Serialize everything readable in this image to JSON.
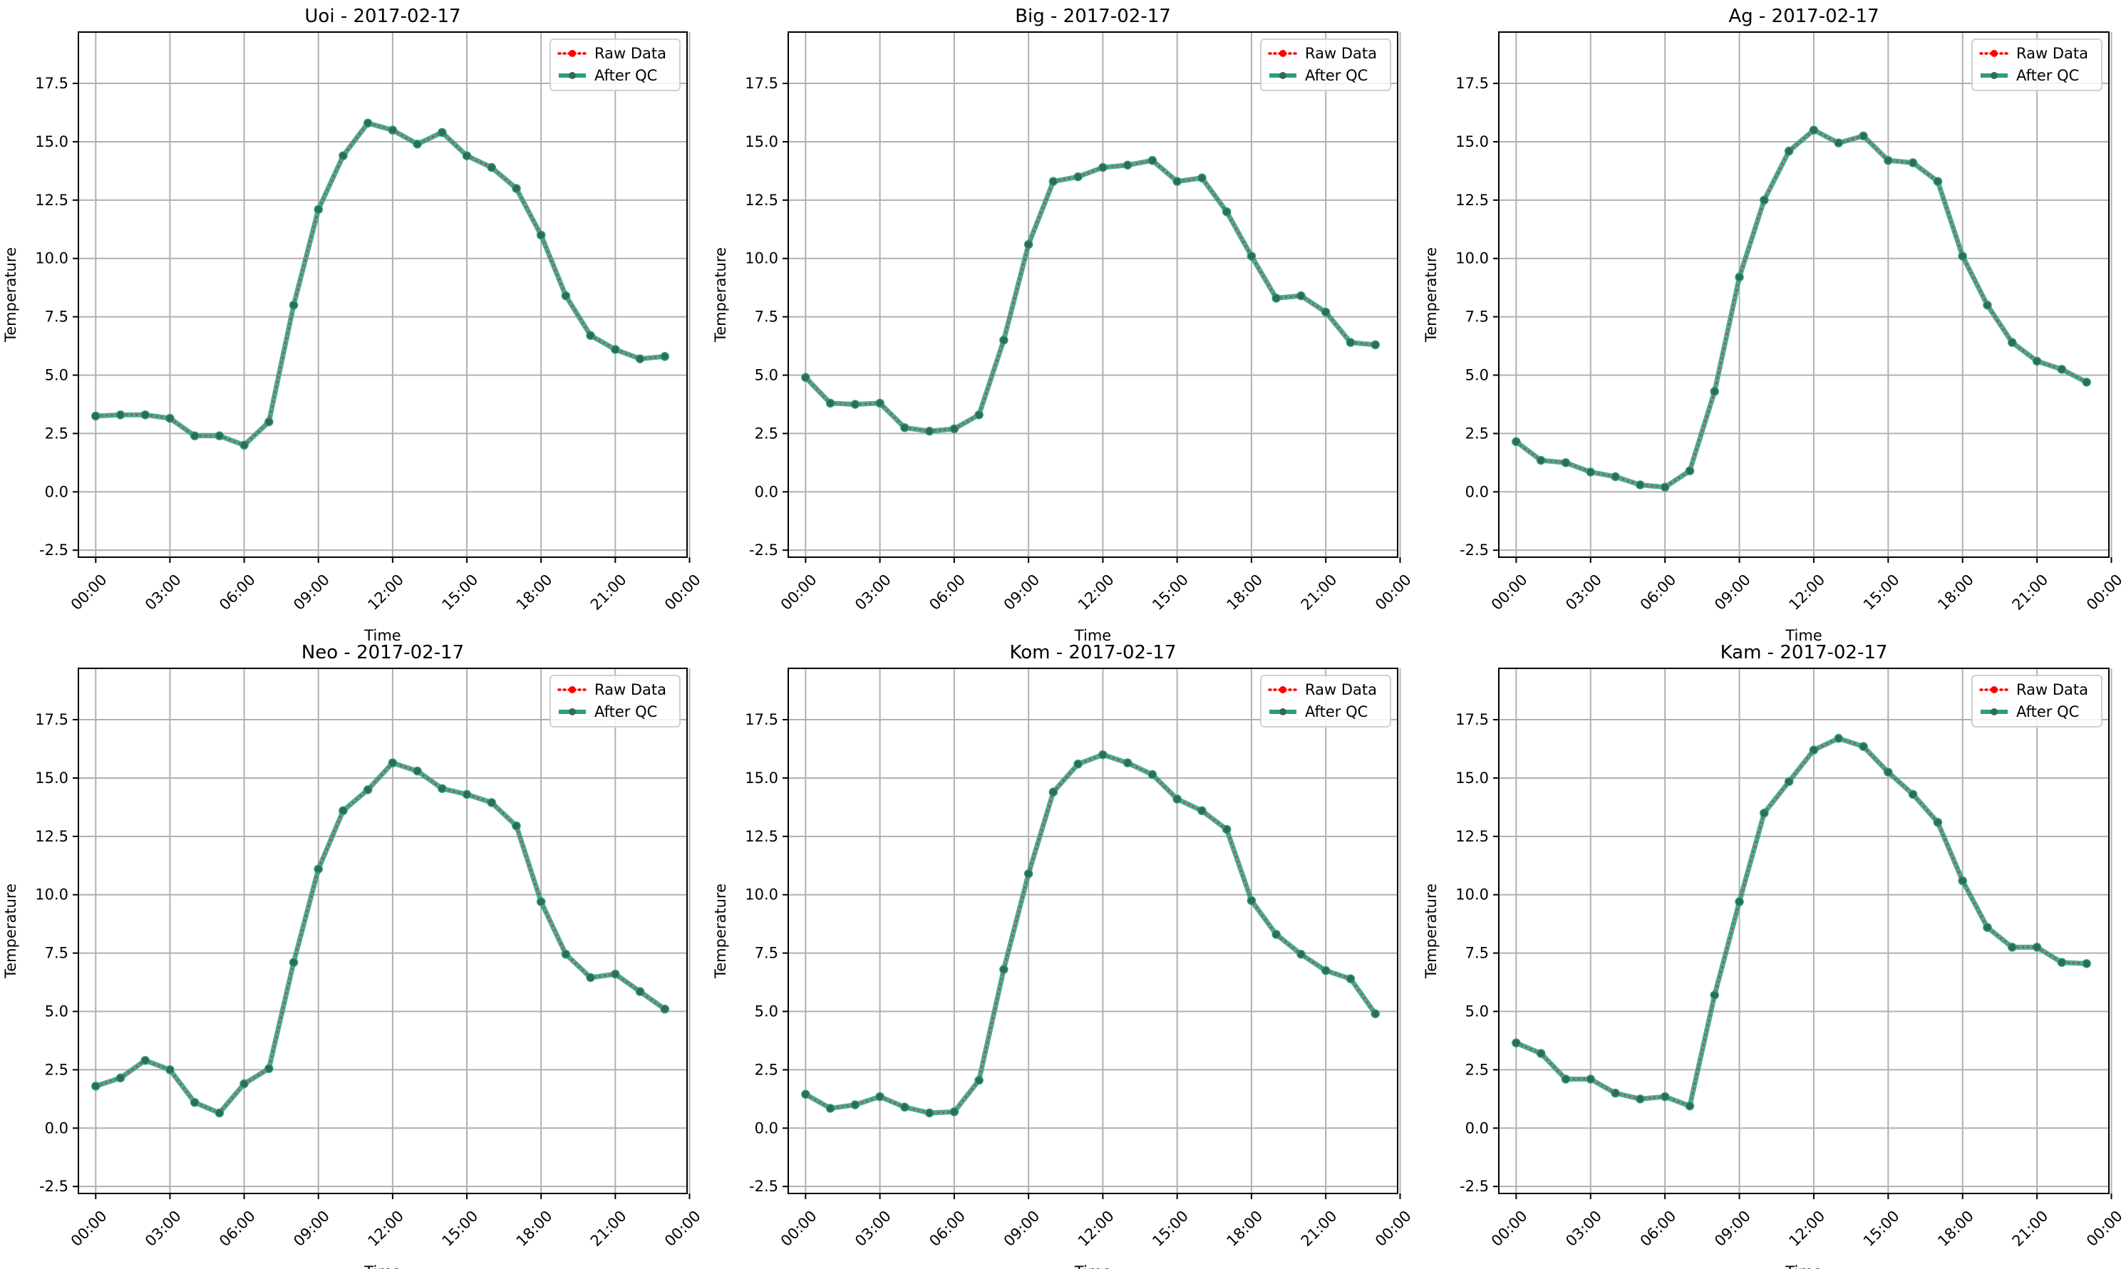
{
  "colors": {
    "raw": "#ff0000",
    "qc": "#2a9d7f",
    "marker": "#2f6b58",
    "grid": "#b0b0b0"
  },
  "chart_data": [
    {
      "type": "line",
      "title": "Uoi - 2017-02-17",
      "xlabel": "Time",
      "ylabel": "Temperature",
      "ylim": [
        -2.8,
        19.7
      ],
      "xlim": [
        -0.7,
        23.9
      ],
      "xticks": [
        0,
        3,
        6,
        9,
        12,
        15,
        18,
        21,
        24
      ],
      "xticklabels": [
        "00:00",
        "03:00",
        "06:00",
        "09:00",
        "12:00",
        "15:00",
        "18:00",
        "21:00",
        "00:00"
      ],
      "yticks": [
        -2.5,
        0,
        2.5,
        5,
        7.5,
        10,
        12.5,
        15,
        17.5
      ],
      "yticklabels": [
        "-2.5",
        "0.0",
        "2.5",
        "5.0",
        "7.5",
        "10.0",
        "12.5",
        "15.0",
        "17.5"
      ],
      "grid": true,
      "legend": "top-right",
      "x": [
        0,
        1,
        2,
        3,
        4,
        5,
        6,
        7,
        8,
        9,
        10,
        11,
        12,
        13,
        14,
        15,
        16,
        17,
        18,
        19,
        20,
        21,
        22,
        23
      ],
      "series": [
        {
          "name": "Raw Data",
          "style": "dotted",
          "values": [
            3.25,
            3.3,
            3.3,
            3.15,
            2.4,
            2.4,
            2.0,
            3.0,
            8.0,
            12.1,
            14.4,
            15.8,
            15.5,
            14.9,
            15.4,
            14.4,
            13.9,
            13.0,
            11.0,
            8.4,
            6.7,
            6.1,
            5.7,
            5.8
          ]
        },
        {
          "name": "After QC",
          "style": "solid",
          "values": [
            3.25,
            3.3,
            3.3,
            3.15,
            2.4,
            2.4,
            2.0,
            3.0,
            8.0,
            12.1,
            14.4,
            15.8,
            15.5,
            14.9,
            15.4,
            14.4,
            13.9,
            13.0,
            11.0,
            8.4,
            6.7,
            6.1,
            5.7,
            5.8
          ]
        }
      ]
    },
    {
      "type": "line",
      "title": "Big - 2017-02-17",
      "xlabel": "Time",
      "ylabel": "Temperature",
      "ylim": [
        -2.8,
        19.7
      ],
      "xlim": [
        -0.7,
        23.9
      ],
      "xticks": [
        0,
        3,
        6,
        9,
        12,
        15,
        18,
        21,
        24
      ],
      "xticklabels": [
        "00:00",
        "03:00",
        "06:00",
        "09:00",
        "12:00",
        "15:00",
        "18:00",
        "21:00",
        "00:00"
      ],
      "yticks": [
        -2.5,
        0,
        2.5,
        5,
        7.5,
        10,
        12.5,
        15,
        17.5
      ],
      "yticklabels": [
        "-2.5",
        "0.0",
        "2.5",
        "5.0",
        "7.5",
        "10.0",
        "12.5",
        "15.0",
        "17.5"
      ],
      "grid": true,
      "legend": "top-right",
      "x": [
        0,
        1,
        2,
        3,
        4,
        5,
        6,
        7,
        8,
        9,
        10,
        11,
        12,
        13,
        14,
        15,
        16,
        17,
        18,
        19,
        20,
        21,
        22,
        23
      ],
      "series": [
        {
          "name": "Raw Data",
          "style": "dotted",
          "values": [
            4.9,
            3.8,
            3.75,
            3.8,
            2.75,
            2.6,
            2.7,
            3.3,
            6.5,
            10.6,
            13.3,
            13.5,
            13.9,
            14.0,
            14.2,
            13.3,
            13.45,
            12.0,
            10.1,
            8.3,
            8.4,
            7.7,
            6.4,
            6.3
          ]
        },
        {
          "name": "After QC",
          "style": "solid",
          "values": [
            4.9,
            3.8,
            3.75,
            3.8,
            2.75,
            2.6,
            2.7,
            3.3,
            6.5,
            10.6,
            13.3,
            13.5,
            13.9,
            14.0,
            14.2,
            13.3,
            13.45,
            12.0,
            10.1,
            8.3,
            8.4,
            7.7,
            6.4,
            6.3
          ]
        }
      ]
    },
    {
      "type": "line",
      "title": "Ag - 2017-02-17",
      "xlabel": "Time",
      "ylabel": "Temperature",
      "ylim": [
        -2.8,
        19.7
      ],
      "xlim": [
        -0.7,
        23.9
      ],
      "xticks": [
        0,
        3,
        6,
        9,
        12,
        15,
        18,
        21,
        24
      ],
      "xticklabels": [
        "00:00",
        "03:00",
        "06:00",
        "09:00",
        "12:00",
        "15:00",
        "18:00",
        "21:00",
        "00:00"
      ],
      "yticks": [
        -2.5,
        0,
        2.5,
        5,
        7.5,
        10,
        12.5,
        15,
        17.5
      ],
      "yticklabels": [
        "-2.5",
        "0.0",
        "2.5",
        "5.0",
        "7.5",
        "10.0",
        "12.5",
        "15.0",
        "17.5"
      ],
      "grid": true,
      "legend": "top-right",
      "x": [
        0,
        1,
        2,
        3,
        4,
        5,
        6,
        7,
        8,
        9,
        10,
        11,
        12,
        13,
        14,
        15,
        16,
        17,
        18,
        19,
        20,
        21,
        22,
        23
      ],
      "series": [
        {
          "name": "Raw Data",
          "style": "dotted",
          "values": [
            2.15,
            1.35,
            1.25,
            0.85,
            0.65,
            0.3,
            0.2,
            0.9,
            4.3,
            9.2,
            12.5,
            14.6,
            15.5,
            14.95,
            15.25,
            14.2,
            14.1,
            13.3,
            10.1,
            8.0,
            6.4,
            5.6,
            5.25,
            4.7
          ]
        },
        {
          "name": "After QC",
          "style": "solid",
          "values": [
            2.15,
            1.35,
            1.25,
            0.85,
            0.65,
            0.3,
            0.2,
            0.9,
            4.3,
            9.2,
            12.5,
            14.6,
            15.5,
            14.95,
            15.25,
            14.2,
            14.1,
            13.3,
            10.1,
            8.0,
            6.4,
            5.6,
            5.25,
            4.7
          ]
        }
      ]
    },
    {
      "type": "line",
      "title": "Neo - 2017-02-17",
      "xlabel": "Time",
      "ylabel": "Temperature",
      "ylim": [
        -2.8,
        19.7
      ],
      "xlim": [
        -0.7,
        23.9
      ],
      "xticks": [
        0,
        3,
        6,
        9,
        12,
        15,
        18,
        21,
        24
      ],
      "xticklabels": [
        "00:00",
        "03:00",
        "06:00",
        "09:00",
        "12:00",
        "15:00",
        "18:00",
        "21:00",
        "00:00"
      ],
      "yticks": [
        -2.5,
        0,
        2.5,
        5,
        7.5,
        10,
        12.5,
        15,
        17.5
      ],
      "yticklabels": [
        "-2.5",
        "0.0",
        "2.5",
        "5.0",
        "7.5",
        "10.0",
        "12.5",
        "15.0",
        "17.5"
      ],
      "grid": true,
      "legend": "top-right",
      "x": [
        0,
        1,
        2,
        3,
        4,
        5,
        6,
        7,
        8,
        9,
        10,
        11,
        12,
        13,
        14,
        15,
        16,
        17,
        18,
        19,
        20,
        21,
        22,
        23
      ],
      "series": [
        {
          "name": "Raw Data",
          "style": "dotted",
          "values": [
            1.8,
            2.15,
            2.9,
            2.5,
            1.1,
            0.65,
            1.9,
            2.55,
            7.1,
            11.1,
            13.6,
            14.5,
            15.65,
            15.3,
            14.55,
            14.3,
            13.95,
            12.95,
            9.7,
            7.45,
            6.45,
            6.6,
            5.85,
            5.1
          ]
        },
        {
          "name": "After QC",
          "style": "solid",
          "values": [
            1.8,
            2.15,
            2.9,
            2.5,
            1.1,
            0.65,
            1.9,
            2.55,
            7.1,
            11.1,
            13.6,
            14.5,
            15.65,
            15.3,
            14.55,
            14.3,
            13.95,
            12.95,
            9.7,
            7.45,
            6.45,
            6.6,
            5.85,
            5.1
          ]
        }
      ]
    },
    {
      "type": "line",
      "title": "Kom - 2017-02-17",
      "xlabel": "Time",
      "ylabel": "Temperature",
      "ylim": [
        -2.8,
        19.7
      ],
      "xlim": [
        -0.7,
        23.9
      ],
      "xticks": [
        0,
        3,
        6,
        9,
        12,
        15,
        18,
        21,
        24
      ],
      "xticklabels": [
        "00:00",
        "03:00",
        "06:00",
        "09:00",
        "12:00",
        "15:00",
        "18:00",
        "21:00",
        "00:00"
      ],
      "yticks": [
        -2.5,
        0,
        2.5,
        5,
        7.5,
        10,
        12.5,
        15,
        17.5
      ],
      "yticklabels": [
        "-2.5",
        "0.0",
        "2.5",
        "5.0",
        "7.5",
        "10.0",
        "12.5",
        "15.0",
        "17.5"
      ],
      "grid": true,
      "legend": "top-right",
      "x": [
        0,
        1,
        2,
        3,
        4,
        5,
        6,
        7,
        8,
        9,
        10,
        11,
        12,
        13,
        14,
        15,
        16,
        17,
        18,
        19,
        20,
        21,
        22,
        23
      ],
      "series": [
        {
          "name": "Raw Data",
          "style": "dotted",
          "values": [
            1.45,
            0.85,
            1.0,
            1.35,
            0.9,
            0.65,
            0.7,
            2.05,
            6.8,
            10.9,
            14.4,
            15.6,
            16.0,
            15.65,
            15.15,
            14.1,
            13.6,
            12.8,
            9.75,
            8.3,
            7.45,
            6.75,
            6.4,
            4.9
          ]
        },
        {
          "name": "After QC",
          "style": "solid",
          "values": [
            1.45,
            0.85,
            1.0,
            1.35,
            0.9,
            0.65,
            0.7,
            2.05,
            6.8,
            10.9,
            14.4,
            15.6,
            16.0,
            15.65,
            15.15,
            14.1,
            13.6,
            12.8,
            9.75,
            8.3,
            7.45,
            6.75,
            6.4,
            4.9
          ]
        }
      ]
    },
    {
      "type": "line",
      "title": "Kam - 2017-02-17",
      "xlabel": "Time",
      "ylabel": "Temperature",
      "ylim": [
        -2.8,
        19.7
      ],
      "xlim": [
        -0.7,
        23.9
      ],
      "xticks": [
        0,
        3,
        6,
        9,
        12,
        15,
        18,
        21,
        24
      ],
      "xticklabels": [
        "00:00",
        "03:00",
        "06:00",
        "09:00",
        "12:00",
        "15:00",
        "18:00",
        "21:00",
        "00:00"
      ],
      "yticks": [
        -2.5,
        0,
        2.5,
        5,
        7.5,
        10,
        12.5,
        15,
        17.5
      ],
      "yticklabels": [
        "-2.5",
        "0.0",
        "2.5",
        "5.0",
        "7.5",
        "10.0",
        "12.5",
        "15.0",
        "17.5"
      ],
      "grid": true,
      "legend": "top-right",
      "x": [
        0,
        1,
        2,
        3,
        4,
        5,
        6,
        7,
        8,
        9,
        10,
        11,
        12,
        13,
        14,
        15,
        16,
        17,
        18,
        19,
        20,
        21,
        22,
        23
      ],
      "series": [
        {
          "name": "Raw Data",
          "style": "dotted",
          "values": [
            3.65,
            3.2,
            2.1,
            2.1,
            1.5,
            1.25,
            1.35,
            0.95,
            5.7,
            9.7,
            13.5,
            14.85,
            16.2,
            16.7,
            16.35,
            15.25,
            14.3,
            13.1,
            10.6,
            8.6,
            7.75,
            7.75,
            7.1,
            7.05
          ]
        },
        {
          "name": "After QC",
          "style": "solid",
          "values": [
            3.65,
            3.2,
            2.1,
            2.1,
            1.5,
            1.25,
            1.35,
            0.95,
            5.7,
            9.7,
            13.5,
            14.85,
            16.2,
            16.7,
            16.35,
            15.25,
            14.3,
            13.1,
            10.6,
            8.6,
            7.75,
            7.75,
            7.1,
            7.05
          ]
        }
      ]
    }
  ]
}
